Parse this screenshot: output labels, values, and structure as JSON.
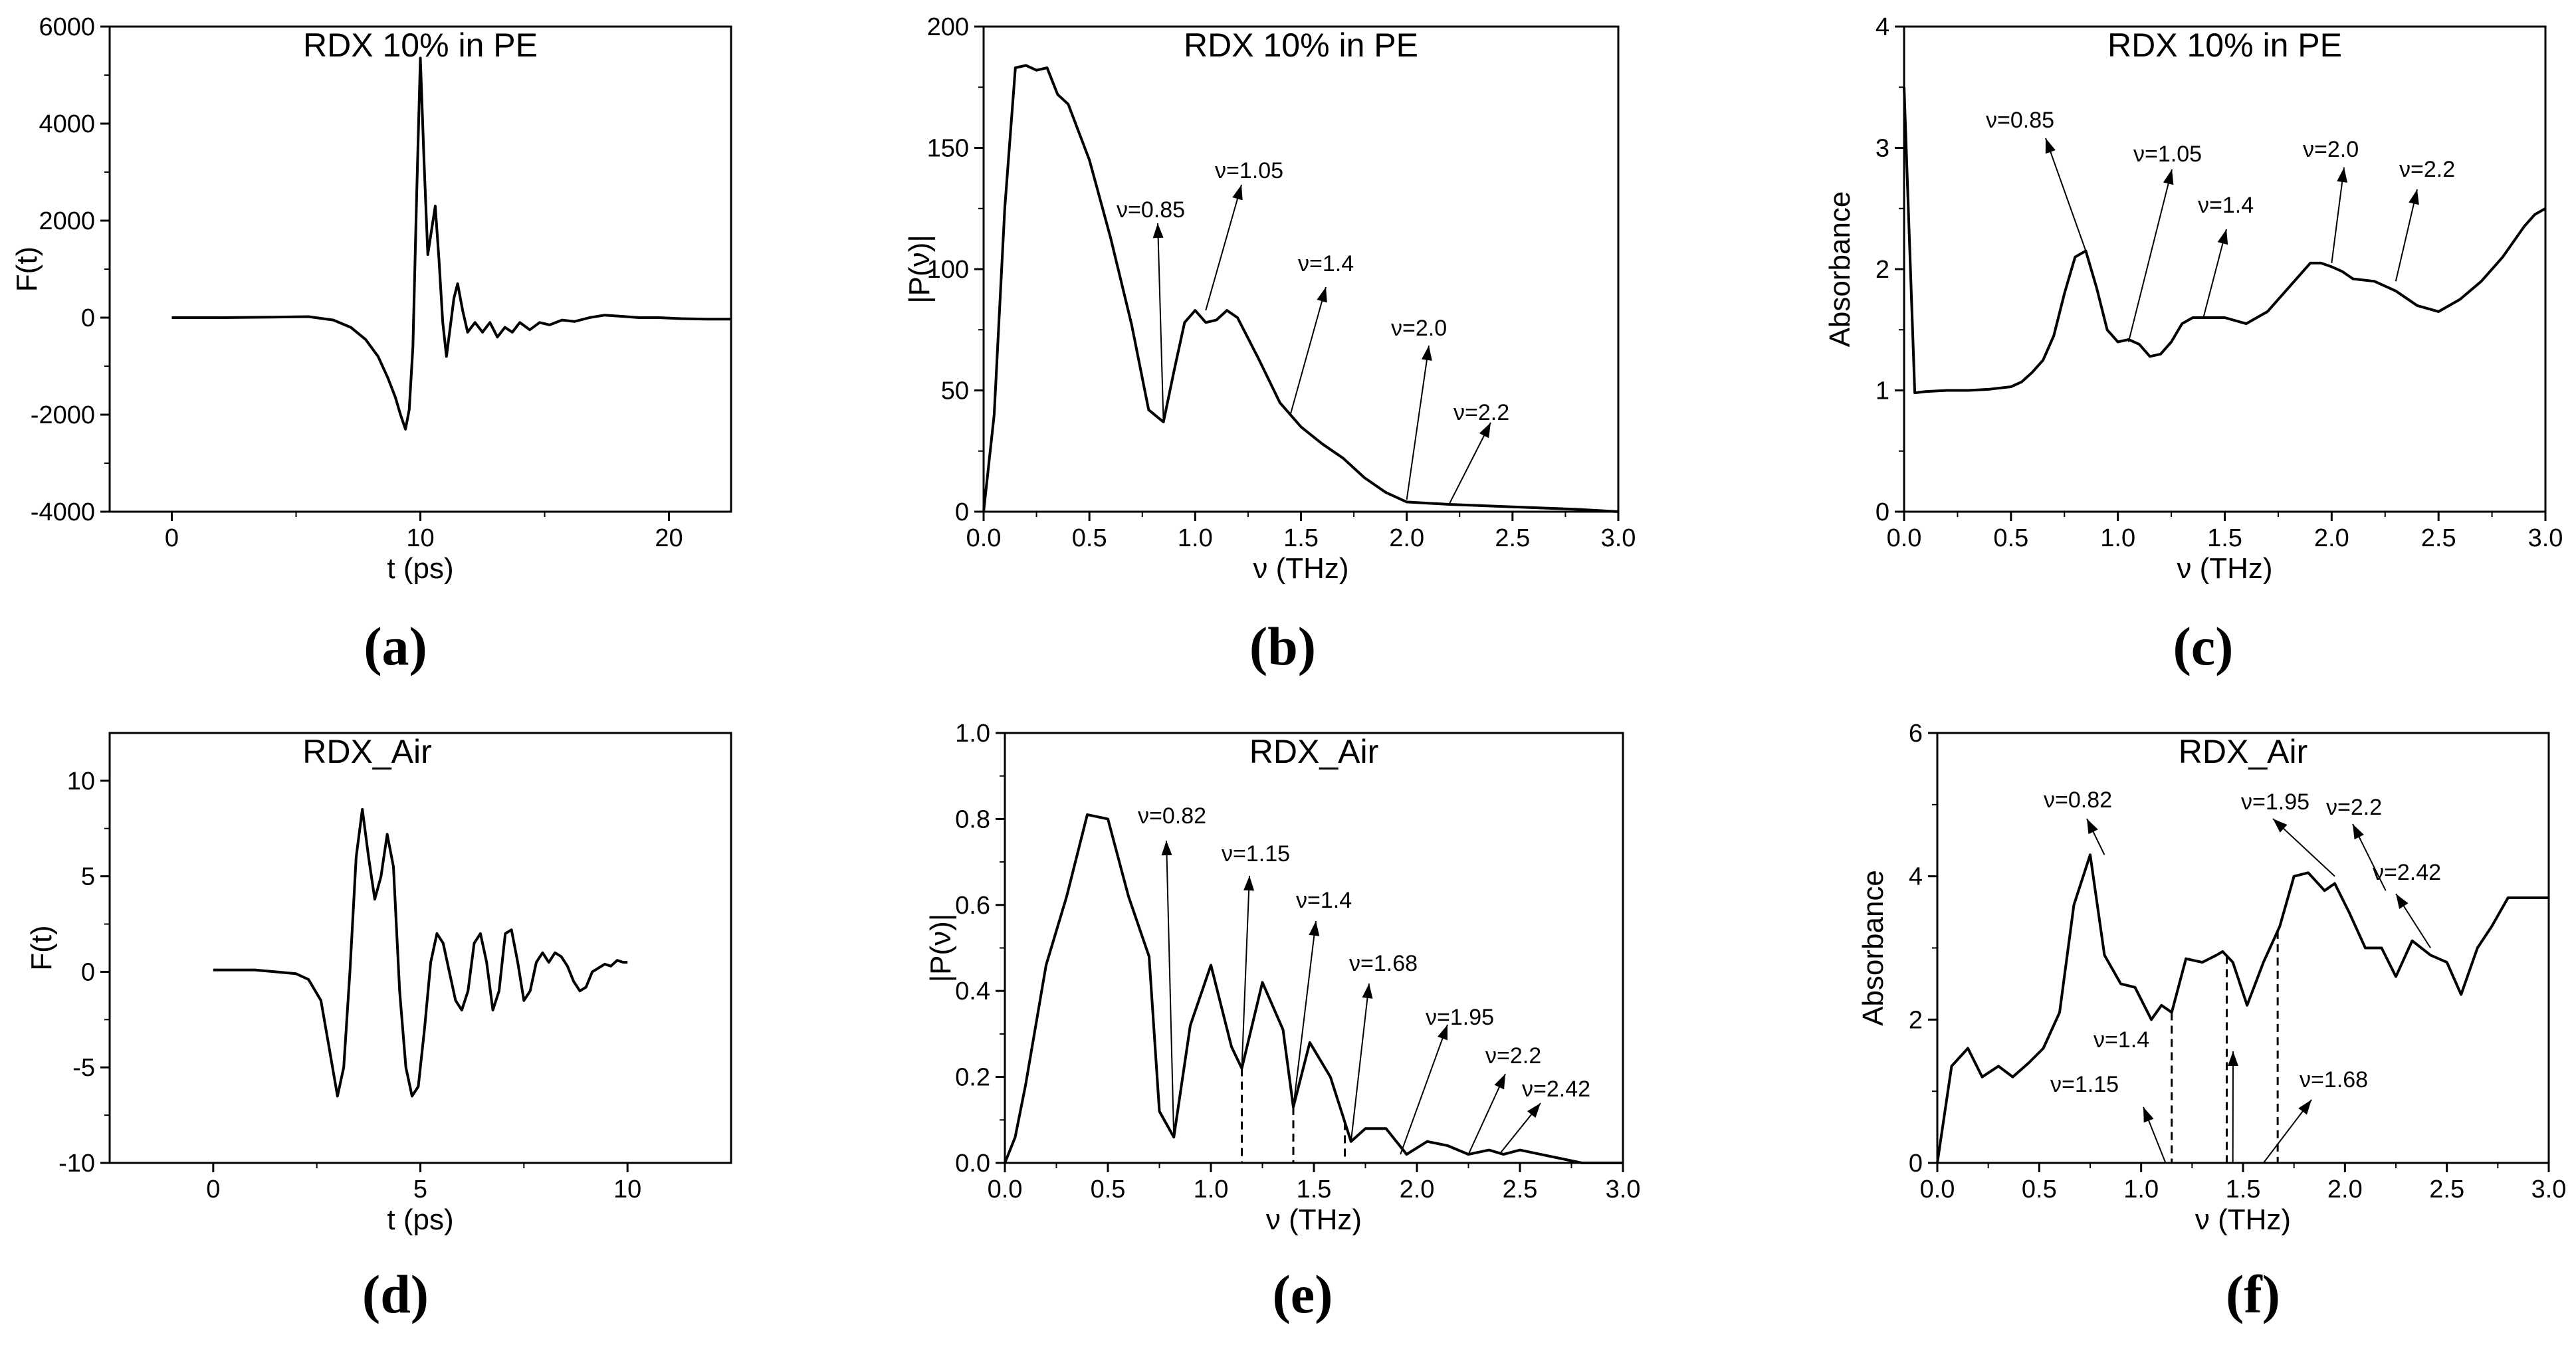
{
  "chart_data": [
    {
      "panel_label": "(a)",
      "type": "line",
      "title": "RDX 10% in PE",
      "xlabel": "t (ps)",
      "ylabel": "F(t)",
      "xlim": [
        -2.5,
        22.5
      ],
      "ylim": [
        -4000,
        6000
      ],
      "xticks": [
        "0",
        "10",
        "20"
      ],
      "yticks": [
        "-4000",
        "-2000",
        "0",
        "2000",
        "4000",
        "6000"
      ],
      "series": [
        {
          "name": "F(t)",
          "x": [
            0,
            2,
            4,
            5.5,
            6.5,
            7.2,
            7.8,
            8.3,
            8.7,
            9.0,
            9.2,
            9.4,
            9.55,
            9.7,
            9.85,
            10.0,
            10.15,
            10.3,
            10.45,
            10.6,
            10.75,
            10.9,
            11.05,
            11.2,
            11.35,
            11.5,
            11.7,
            11.9,
            12.2,
            12.5,
            12.8,
            13.1,
            13.4,
            13.7,
            14.0,
            14.4,
            14.8,
            15.2,
            15.7,
            16.2,
            16.8,
            17.4,
            18,
            18.8,
            19.6,
            20.5,
            21.5,
            22.5
          ],
          "y": [
            0,
            0,
            10,
            20,
            -50,
            -200,
            -450,
            -800,
            -1250,
            -1650,
            -2000,
            -2300,
            -1900,
            -600,
            2500,
            5350,
            3200,
            1300,
            1800,
            2300,
            1200,
            -100,
            -800,
            -200,
            400,
            700,
            150,
            -300,
            -100,
            -300,
            -100,
            -400,
            -200,
            -300,
            -100,
            -250,
            -100,
            -150,
            -50,
            -80,
            0,
            50,
            30,
            0,
            0,
            -20,
            -30,
            -30
          ]
        }
      ]
    },
    {
      "panel_label": "(b)",
      "type": "line",
      "title": "RDX 10% in PE",
      "xlabel": "ν (THz)",
      "ylabel": "|P(ν)|",
      "xlim": [
        0,
        3
      ],
      "ylim": [
        0,
        200
      ],
      "xticks": [
        "0.0",
        "0.5",
        "1.0",
        "1.5",
        "2.0",
        "2.5",
        "3.0"
      ],
      "yticks": [
        "0",
        "50",
        "100",
        "150",
        "200"
      ],
      "series": [
        {
          "name": "|P(ν)|",
          "x": [
            0,
            0.05,
            0.1,
            0.15,
            0.2,
            0.25,
            0.3,
            0.35,
            0.4,
            0.5,
            0.6,
            0.7,
            0.78,
            0.85,
            0.9,
            0.95,
            1.0,
            1.05,
            1.1,
            1.15,
            1.2,
            1.3,
            1.4,
            1.5,
            1.6,
            1.7,
            1.8,
            1.9,
            2.0,
            2.2,
            2.5,
            2.8,
            3.0
          ],
          "y": [
            0,
            40,
            125,
            183,
            184,
            182,
            183,
            172,
            168,
            145,
            113,
            77,
            42,
            37,
            58,
            78,
            83,
            78,
            79,
            83,
            80,
            63,
            45,
            35,
            28,
            22,
            14,
            8,
            4,
            3,
            2,
            1,
            0
          ]
        }
      ],
      "annotations": [
        "ν=0.85",
        "ν=1.05",
        "ν=1.4",
        "ν=2.0",
        "ν=2.2"
      ]
    },
    {
      "panel_label": "(c)",
      "type": "line",
      "title": "RDX 10% in PE",
      "xlabel": "ν (THz)",
      "ylabel": "Absorbance",
      "xlim": [
        0,
        3
      ],
      "ylim": [
        0,
        4
      ],
      "xticks": [
        "0.0",
        "0.5",
        "1.0",
        "1.5",
        "2.0",
        "2.5",
        "3.0"
      ],
      "yticks": [
        "0",
        "1",
        "2",
        "3",
        "4"
      ],
      "series": [
        {
          "name": "Absorbance",
          "x": [
            0,
            0.05,
            0.1,
            0.2,
            0.3,
            0.4,
            0.5,
            0.55,
            0.6,
            0.65,
            0.7,
            0.75,
            0.8,
            0.85,
            0.9,
            0.95,
            1.0,
            1.05,
            1.1,
            1.15,
            1.2,
            1.25,
            1.3,
            1.35,
            1.4,
            1.5,
            1.6,
            1.7,
            1.8,
            1.9,
            1.95,
            2.0,
            2.05,
            2.1,
            2.2,
            2.3,
            2.4,
            2.5,
            2.6,
            2.7,
            2.8,
            2.9,
            2.95,
            3.0
          ],
          "y": [
            3.5,
            0.98,
            0.99,
            1.0,
            1.0,
            1.01,
            1.03,
            1.07,
            1.15,
            1.25,
            1.45,
            1.8,
            2.1,
            2.15,
            1.85,
            1.5,
            1.4,
            1.42,
            1.38,
            1.28,
            1.3,
            1.4,
            1.55,
            1.6,
            1.6,
            1.6,
            1.55,
            1.65,
            1.85,
            2.05,
            2.05,
            2.02,
            1.98,
            1.92,
            1.9,
            1.82,
            1.7,
            1.65,
            1.75,
            1.9,
            2.1,
            2.35,
            2.45,
            2.5
          ]
        }
      ],
      "annotations": [
        "ν=0.85",
        "ν=1.05",
        "ν=1.4",
        "ν=2.0",
        "ν=2.2"
      ]
    },
    {
      "panel_label": "(d)",
      "type": "line",
      "title": "RDX_Air",
      "xlabel": "t (ps)",
      "ylabel": "F(t)",
      "xlim": [
        -2.5,
        12.5
      ],
      "ylim": [
        -10,
        12.5
      ],
      "xticks": [
        "0",
        "5",
        "10"
      ],
      "yticks": [
        "-10",
        "-5",
        "0",
        "5",
        "10"
      ],
      "series": [
        {
          "name": "F(t)",
          "x": [
            0,
            0.5,
            1,
            1.5,
            2,
            2.3,
            2.6,
            2.8,
            3.0,
            3.15,
            3.3,
            3.45,
            3.6,
            3.75,
            3.9,
            4.05,
            4.2,
            4.35,
            4.5,
            4.65,
            4.8,
            4.95,
            5.1,
            5.25,
            5.4,
            5.55,
            5.7,
            5.85,
            6.0,
            6.15,
            6.3,
            6.45,
            6.6,
            6.75,
            6.9,
            7.05,
            7.2,
            7.35,
            7.5,
            7.65,
            7.8,
            7.95,
            8.1,
            8.25,
            8.4,
            8.55,
            8.7,
            8.85,
            9.0,
            9.15,
            9.3,
            9.45,
            9.6,
            9.75,
            9.9,
            10.0
          ],
          "y": [
            0.1,
            0.1,
            0.1,
            0.0,
            -0.1,
            -0.4,
            -1.5,
            -4,
            -6.5,
            -5,
            0,
            6,
            8.5,
            6,
            3.8,
            5,
            7.2,
            5.5,
            -1,
            -5,
            -6.5,
            -6,
            -3,
            0.5,
            2,
            1.5,
            0,
            -1.5,
            -2,
            -1,
            1.5,
            2,
            0.5,
            -2,
            -1,
            2,
            2.2,
            0.5,
            -1.5,
            -1,
            0.5,
            1,
            0.5,
            1,
            0.8,
            0.3,
            -0.5,
            -1,
            -0.8,
            0,
            0.2,
            0.4,
            0.3,
            0.6,
            0.5,
            0.5
          ]
        }
      ]
    },
    {
      "panel_label": "(e)",
      "type": "line",
      "title": "RDX_Air",
      "xlabel": "ν (THz)",
      "ylabel": "|P(ν)|",
      "xlim": [
        0,
        3
      ],
      "ylim": [
        0,
        1.0
      ],
      "xticks": [
        "0.0",
        "0.5",
        "1.0",
        "1.5",
        "2.0",
        "2.5",
        "3.0"
      ],
      "yticks": [
        "0.0",
        "0.2",
        "0.4",
        "0.6",
        "0.8",
        "1.0"
      ],
      "series": [
        {
          "name": "|P(ν)|",
          "x": [
            0,
            0.05,
            0.1,
            0.2,
            0.3,
            0.4,
            0.5,
            0.6,
            0.7,
            0.75,
            0.82,
            0.9,
            1.0,
            1.1,
            1.15,
            1.25,
            1.35,
            1.4,
            1.48,
            1.58,
            1.68,
            1.75,
            1.85,
            1.95,
            2.05,
            2.15,
            2.25,
            2.35,
            2.42,
            2.5,
            2.6,
            2.7,
            2.8,
            3.0
          ],
          "y": [
            0,
            0.06,
            0.18,
            0.46,
            0.62,
            0.81,
            0.8,
            0.62,
            0.48,
            0.12,
            0.06,
            0.32,
            0.46,
            0.27,
            0.22,
            0.42,
            0.31,
            0.13,
            0.28,
            0.2,
            0.05,
            0.08,
            0.08,
            0.02,
            0.05,
            0.04,
            0.02,
            0.03,
            0.02,
            0.03,
            0.02,
            0.01,
            0.0,
            0.0
          ]
        }
      ],
      "annotations": [
        "ν=0.82",
        "ν=1.15",
        "ν=1.4",
        "ν=1.68",
        "ν=1.95",
        "ν=2.2",
        "ν=2.42"
      ]
    },
    {
      "panel_label": "(f)",
      "type": "line",
      "title": "RDX_Air",
      "xlabel": "ν (THz)",
      "ylabel": "Absorbance",
      "xlim": [
        0,
        3
      ],
      "ylim": [
        0,
        6
      ],
      "xticks": [
        "0.0",
        "0.5",
        "1.0",
        "1.5",
        "2.0",
        "2.5",
        "3.0"
      ],
      "yticks": [
        "0",
        "2",
        "4",
        "6"
      ],
      "series": [
        {
          "name": "Absorbance",
          "x": [
            0,
            0.07,
            0.15,
            0.22,
            0.3,
            0.37,
            0.45,
            0.52,
            0.6,
            0.67,
            0.75,
            0.82,
            0.9,
            0.97,
            1.05,
            1.1,
            1.15,
            1.22,
            1.3,
            1.37,
            1.4,
            1.45,
            1.52,
            1.6,
            1.68,
            1.75,
            1.82,
            1.9,
            1.95,
            2.02,
            2.1,
            2.18,
            2.25,
            2.33,
            2.42,
            2.5,
            2.57,
            2.65,
            2.72,
            2.8,
            2.87,
            3.0
          ],
          "y": [
            0,
            1.35,
            1.6,
            1.2,
            1.35,
            1.2,
            1.4,
            1.6,
            2.1,
            3.6,
            4.3,
            2.9,
            2.5,
            2.45,
            2.0,
            2.2,
            2.1,
            2.85,
            2.8,
            2.9,
            2.95,
            2.8,
            2.2,
            2.8,
            3.3,
            4.0,
            4.05,
            3.8,
            3.9,
            3.5,
            3.0,
            3.0,
            2.6,
            3.1,
            2.9,
            2.8,
            2.35,
            3.0,
            3.3,
            3.7,
            3.7,
            3.7
          ]
        }
      ],
      "annotations": [
        "ν=0.82",
        "ν=1.95",
        "ν=2.2",
        "ν=2.42",
        "ν=1.4",
        "ν=1.15",
        "ν=1.68"
      ]
    }
  ]
}
